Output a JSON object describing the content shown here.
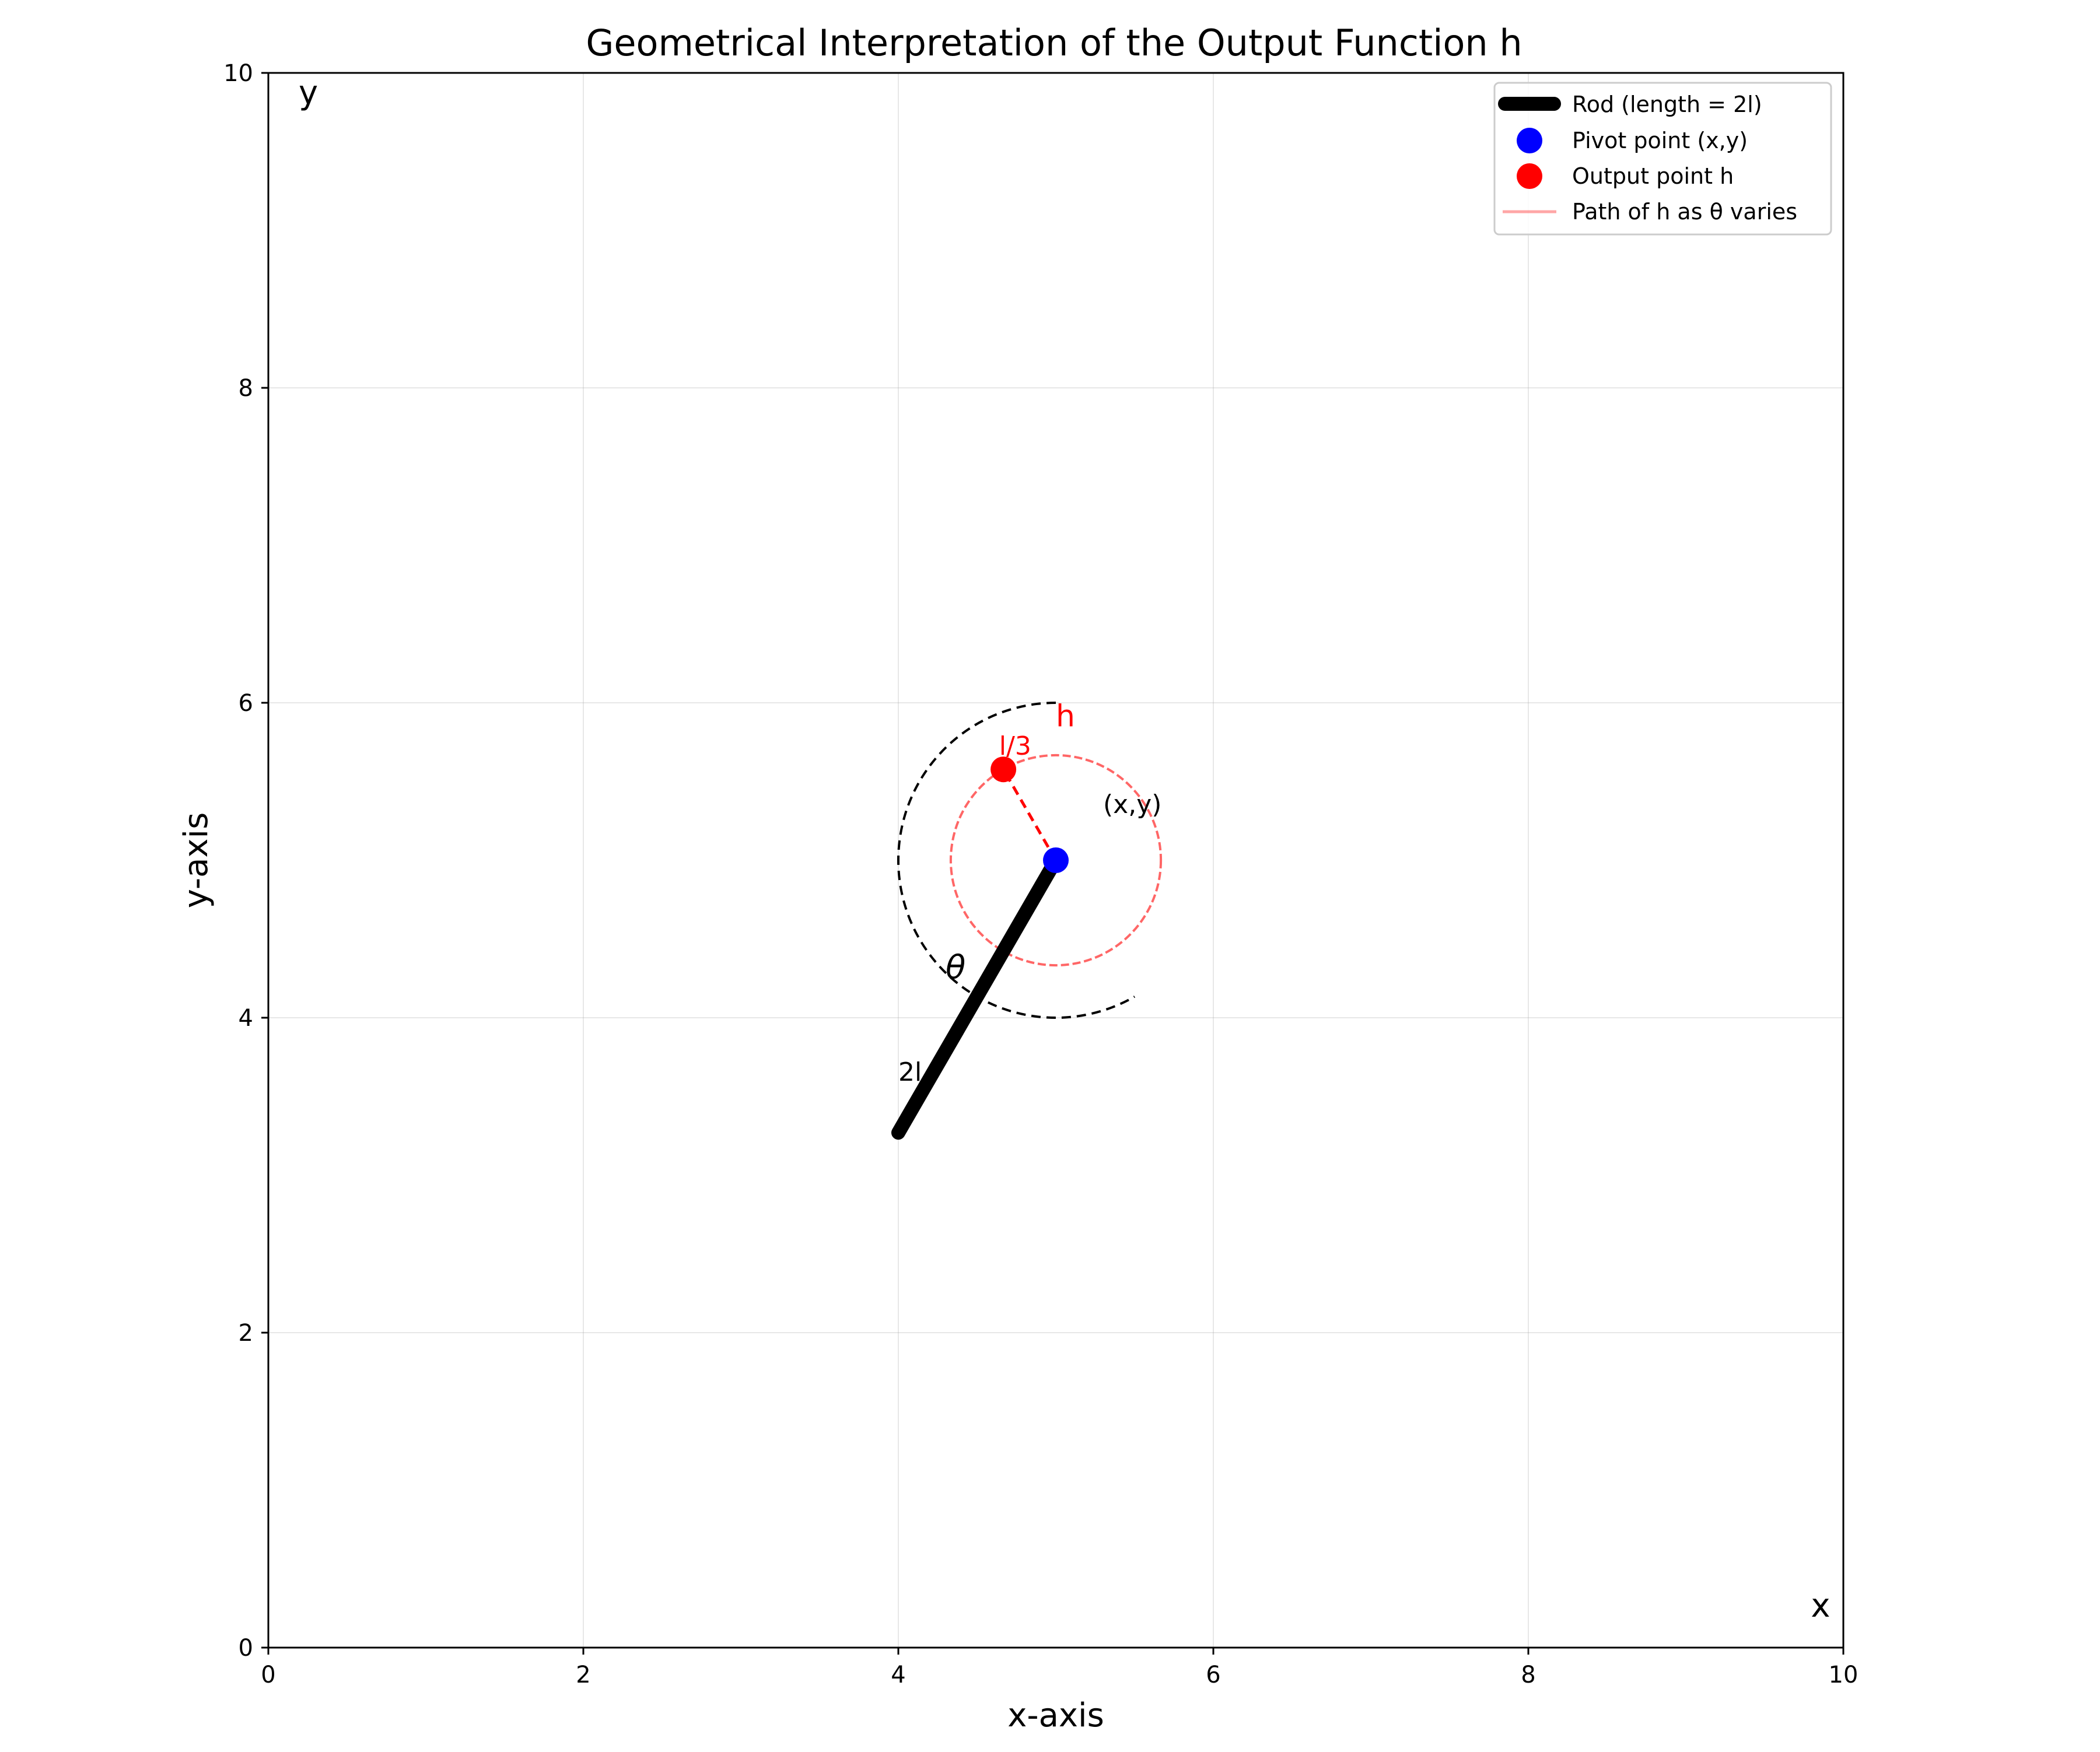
{
  "chart_data": {
    "type": "scatter",
    "title": "Geometrical Interpretation of the Output Function h",
    "xlabel": "x-axis",
    "ylabel": "y-axis",
    "xlim": [
      0,
      10
    ],
    "ylim": [
      0,
      10
    ],
    "xticks": [
      0,
      2,
      4,
      6,
      8,
      10
    ],
    "yticks": [
      0,
      2,
      4,
      6,
      8,
      10
    ],
    "grid": true,
    "legend_position": "top-right",
    "corner_labels": {
      "y": "y",
      "x": "x"
    },
    "rod": {
      "start": [
        4.0,
        3.27
      ],
      "end": [
        5.0,
        5.0
      ],
      "color": "#000000",
      "legend": "Rod (length = 2l)",
      "label": "2l",
      "label_at": [
        4.0,
        3.6
      ]
    },
    "pivot": {
      "point": [
        5.0,
        5.0
      ],
      "color": "#0000ff",
      "legend": "Pivot point (x,y)",
      "label": "(x,y)",
      "label_at": [
        5.3,
        5.3
      ]
    },
    "output_point": {
      "point": [
        4.667,
        5.577
      ],
      "color": "#ff0000",
      "legend": "Output point h",
      "label": "h",
      "label_at": [
        5.0,
        5.85
      ],
      "connector_label": "l/3",
      "connector_label_at": [
        4.64,
        5.67
      ]
    },
    "output_path": {
      "center": [
        5.0,
        5.0
      ],
      "radius": 0.667,
      "color": "#ff0000",
      "legend": "Path of h as θ varies"
    },
    "angle_arc": {
      "center": [
        5.0,
        5.0
      ],
      "radius": 1.0,
      "start_deg": 90,
      "end_deg": 300,
      "label": "θ",
      "label_at": [
        4.3,
        4.25
      ]
    }
  }
}
